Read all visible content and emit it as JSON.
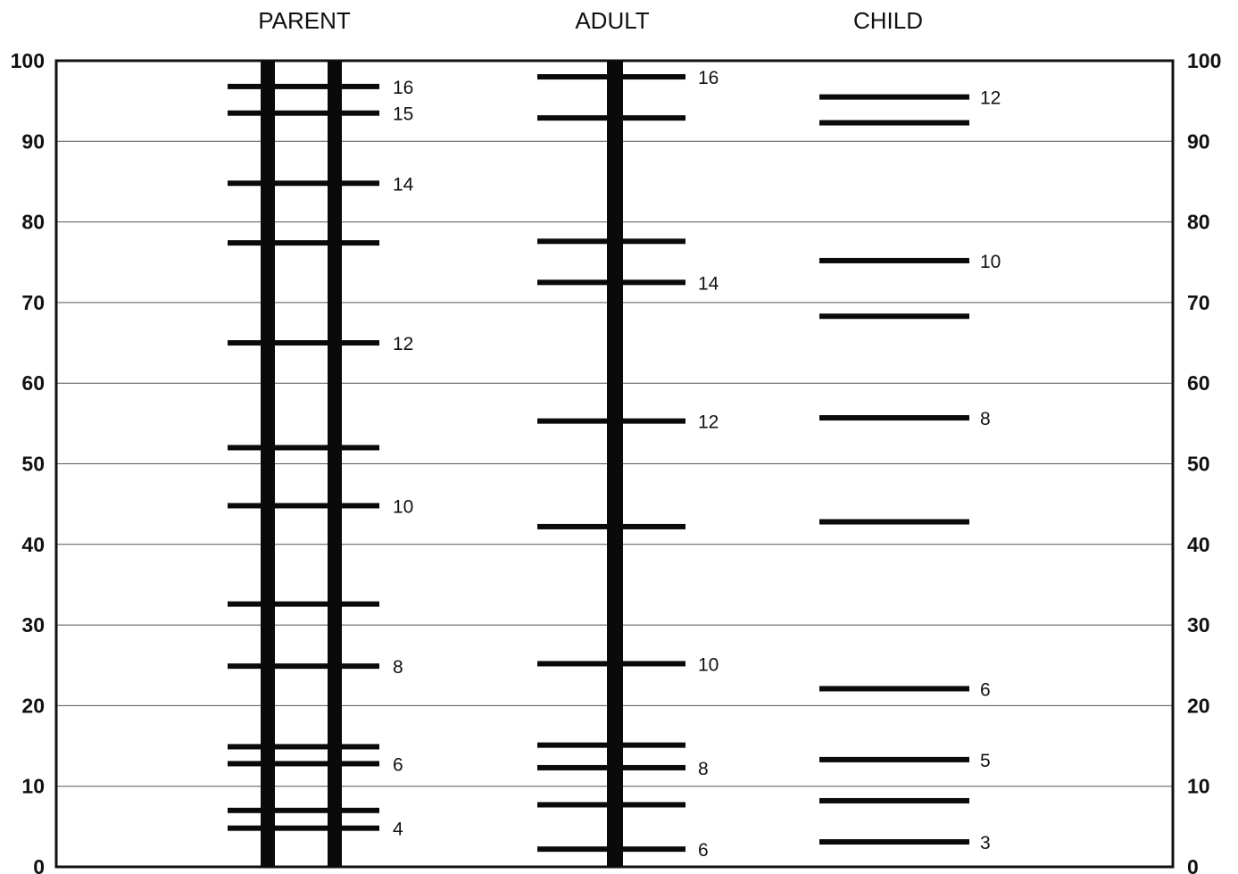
{
  "chart_data": {
    "type": "scale-ladder",
    "columns": [
      {
        "title": "PARENT",
        "rungs": [
          {
            "value": 96.8,
            "label": "16"
          },
          {
            "value": 93.5,
            "label": "15"
          },
          {
            "value": 84.8,
            "label": "14"
          },
          {
            "value": 77.4,
            "label": ""
          },
          {
            "value": 65.0,
            "label": "12"
          },
          {
            "value": 52.0,
            "label": ""
          },
          {
            "value": 44.8,
            "label": "10"
          },
          {
            "value": 32.6,
            "label": ""
          },
          {
            "value": 24.9,
            "label": "8"
          },
          {
            "value": 14.9,
            "label": ""
          },
          {
            "value": 12.8,
            "label": "6"
          },
          {
            "value": 7.0,
            "label": ""
          },
          {
            "value": 4.8,
            "label": "4"
          }
        ]
      },
      {
        "title": "ADULT",
        "rungs": [
          {
            "value": 98.0,
            "label": "16"
          },
          {
            "value": 92.9,
            "label": ""
          },
          {
            "value": 77.6,
            "label": ""
          },
          {
            "value": 72.5,
            "label": "14"
          },
          {
            "value": 55.3,
            "label": "12"
          },
          {
            "value": 42.2,
            "label": ""
          },
          {
            "value": 25.2,
            "label": "10"
          },
          {
            "value": 15.1,
            "label": ""
          },
          {
            "value": 12.3,
            "label": "8"
          },
          {
            "value": 7.7,
            "label": ""
          },
          {
            "value": 2.2,
            "label": "6"
          }
        ]
      },
      {
        "title": "CHILD",
        "rungs": [
          {
            "value": 95.5,
            "label": "12"
          },
          {
            "value": 92.3,
            "label": ""
          },
          {
            "value": 75.2,
            "label": "10"
          },
          {
            "value": 68.3,
            "label": ""
          },
          {
            "value": 55.7,
            "label": "8"
          },
          {
            "value": 42.8,
            "label": ""
          },
          {
            "value": 22.1,
            "label": "6"
          },
          {
            "value": 13.3,
            "label": "5"
          },
          {
            "value": 8.2,
            "label": ""
          },
          {
            "value": 3.1,
            "label": "3"
          }
        ]
      }
    ],
    "y_axis": {
      "range": [
        0,
        100
      ],
      "ticks": [
        "0",
        "10",
        "20",
        "30",
        "40",
        "50",
        "60",
        "70",
        "80",
        "90",
        "100"
      ],
      "left_and_right": true
    },
    "grid": true
  }
}
